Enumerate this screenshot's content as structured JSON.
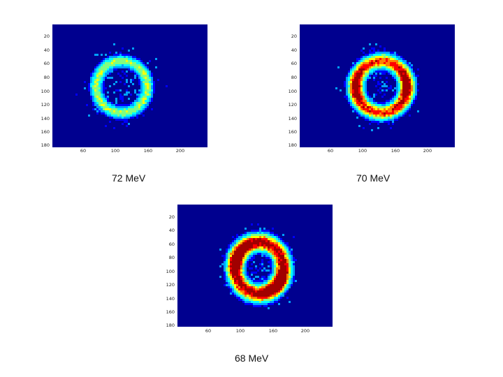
{
  "panels": [
    {
      "caption": "72 MeV",
      "y_ticks": [
        "20",
        "40",
        "60",
        "80",
        "100",
        "120",
        "140",
        "160",
        "180"
      ],
      "x_ticks": [
        "60",
        "100",
        "160",
        "200"
      ],
      "intensity": "low"
    },
    {
      "caption": "70 MeV",
      "y_ticks": [
        "20",
        "40",
        "60",
        "80",
        "100",
        "120",
        "140",
        "160",
        "180"
      ],
      "x_ticks": [
        "60",
        "100",
        "160",
        "200"
      ],
      "intensity": "medium"
    },
    {
      "caption": "68 MeV",
      "y_ticks": [
        "20",
        "40",
        "60",
        "80",
        "100",
        "120",
        "140",
        "160",
        "180"
      ],
      "x_ticks": [
        "60",
        "100",
        "160",
        "200"
      ],
      "intensity": "high"
    }
  ],
  "colors": {
    "background": "#00008f",
    "colormap": [
      "#00008f",
      "#0000ff",
      "#00a0ff",
      "#00ffff",
      "#80ff80",
      "#ffff00",
      "#ff8000",
      "#ff0000",
      "#a00000"
    ]
  }
}
